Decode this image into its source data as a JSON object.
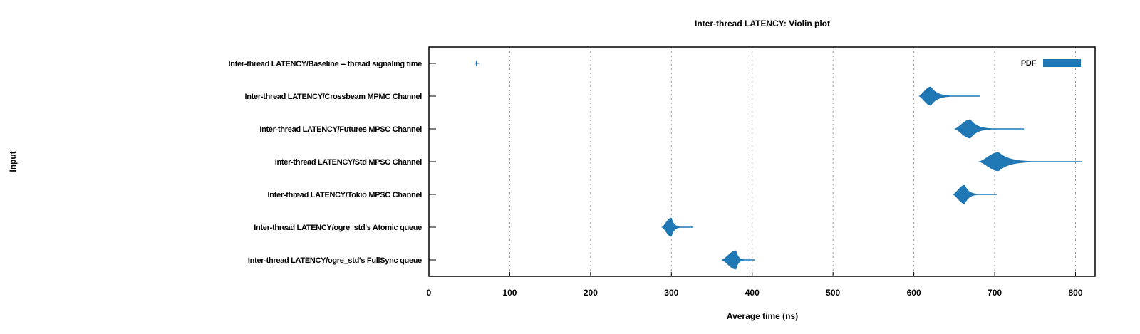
{
  "chart_data": {
    "type": "violin",
    "title": "Inter-thread LATENCY: Violin plot",
    "xlabel": "Average time (ns)",
    "ylabel": "Input",
    "xlim": [
      0,
      830
    ],
    "xticks": [
      0,
      100,
      200,
      300,
      400,
      500,
      600,
      700,
      800
    ],
    "grid": "vertical dotted",
    "legend": {
      "position": "top-right",
      "entries": [
        {
          "label": "PDF",
          "color": "#1f77b4"
        }
      ]
    },
    "color": "#1f77b4",
    "categories": [
      "Inter-thread LATENCY/Baseline -- thread signaling time",
      "Inter-thread LATENCY/Crossbeam MPMC Channel",
      "Inter-thread LATENCY/Futures MPSC Channel",
      "Inter-thread LATENCY/Std MPSC Channel",
      "Inter-thread LATENCY/Tokio MPSC Channel",
      "Inter-thread LATENCY/ogre_std's Atomic queue",
      "Inter-thread LATENCY/ogre_std's FullSync queue"
    ],
    "series": [
      {
        "peak": 59,
        "min": 58,
        "max": 62,
        "width": 1.0
      },
      {
        "peak": 621,
        "min": 606,
        "max": 682,
        "width": 1.0
      },
      {
        "peak": 670,
        "min": 650,
        "max": 736,
        "width": 1.0
      },
      {
        "peak": 705,
        "min": 680,
        "max": 808,
        "width": 1.0
      },
      {
        "peak": 663,
        "min": 648,
        "max": 703,
        "width": 1.0
      },
      {
        "peak": 300,
        "min": 288,
        "max": 327,
        "width": 1.0
      },
      {
        "peak": 380,
        "min": 362,
        "max": 403,
        "width": 1.0
      }
    ]
  }
}
